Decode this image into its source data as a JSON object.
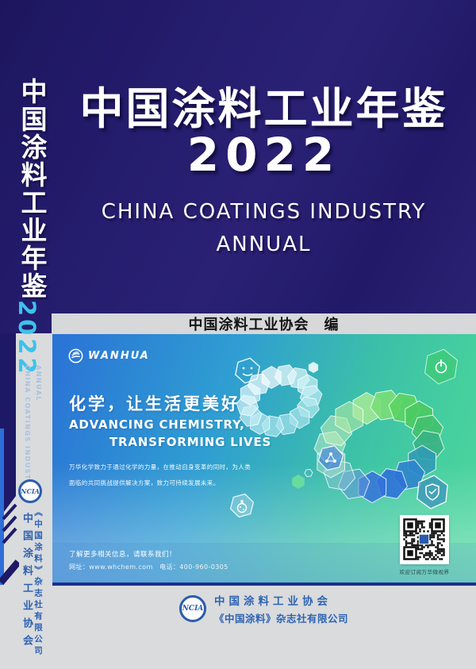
{
  "cover": {
    "title": "中国涂料工业年鉴",
    "year": "2022",
    "subtitle_line1": "CHINA COATINGS INDUSTRY",
    "subtitle_line2": "ANNUAL",
    "editor_line": "中国涂料工业协会　编"
  },
  "spine": {
    "title": "中国涂料工业年鉴",
    "year": "2022",
    "subtitle_line1": "CHINA COATINGS INDUSTRY",
    "subtitle_line2": "ANNUAL",
    "logo_text": "NCIA",
    "org": "中国涂料工业协会",
    "publisher": "《中国涂料》杂志社有限公司"
  },
  "ad": {
    "brand": "WANHUA",
    "headline_cn": "化学，让生活更美好",
    "headline_en_line1": "ADVANCING CHEMISTRY,",
    "headline_en_line2": "TRANSFORMING LIVES",
    "body_line1": "万华化学致力于通过化学的力量，在推动自身变革的同时，为人类",
    "body_line2": "面临的共同挑战提供解决方案，致力可持续发展未来。",
    "contact_line1": "了解更多相关信息，请联系我们！",
    "contact_line2": "网址：www.whchem.com　电话：400-960-0305",
    "qr_caption": "欢迎订阅万华微视界"
  },
  "publisher": {
    "logo_text": "NCIA",
    "line1": "中国涂料工业协会",
    "line2": "《中国涂料》杂志社有限公司"
  },
  "icons": {
    "wanhua_swoosh": "wanhua-swoosh-icon",
    "ncia_ring": "ncia-ring-logo",
    "qr": "qr-code",
    "hex_smiley": "smiley-face-hexagon-icon",
    "hex_power": "power-hexagon-icon",
    "hex_shield": "shield-check-hexagon-icon",
    "hex_molecule": "molecule-hexagon-icon",
    "hex_flask": "flask-hexagon-icon",
    "ribbon": "hexagon-infinity-ribbon-graphic",
    "stripes": "spine-stripe-decoration"
  },
  "colors": {
    "cover_navy": "#231c6d",
    "spine_year_cyan": "#3cc2ec",
    "card_blue": "#2a72d6",
    "card_green": "#4ed69e",
    "card_border_navy": "#1d2f8e",
    "publisher_blue": "#2e64b4",
    "band_gray": "#d6d8da"
  }
}
